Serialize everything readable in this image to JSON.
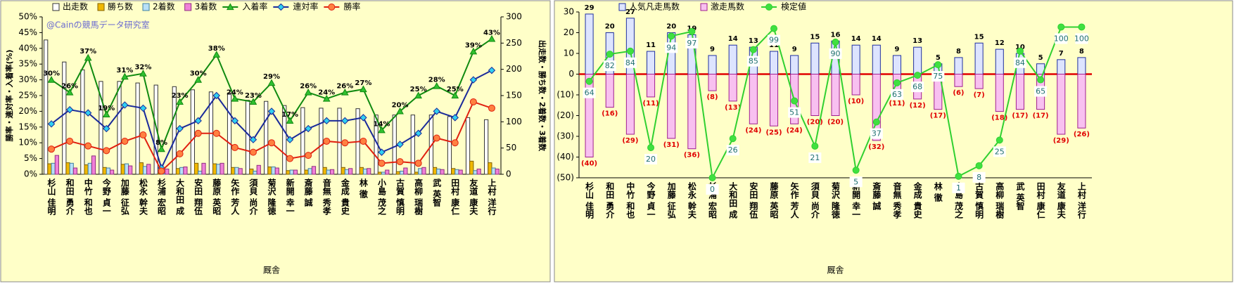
{
  "chart_data": [
    {
      "type": "combo",
      "bar_mode": "group",
      "x_label": "厩舎",
      "y_label": "勝率・連対率・入着率(%)",
      "y2_label": "出走数・勝ち数・2着数・3着数",
      "annotation": "@Cainの競馬データ研究室",
      "categories": [
        "杉山 佳明",
        "和田 勇介",
        "中竹 和也",
        "今野 貞一",
        "加藤 征弘",
        "松永 幹夫",
        "杉浦 宏昭",
        "大和田 成",
        "安田 翔伍",
        "藤原 英昭",
        "矢作 芳人",
        "須貝 尚介",
        "菊沢 隆徳",
        "新開 幸一",
        "斎藤 誠",
        "音無 秀孝",
        "金成 貴史",
        "林 徹",
        "小島 茂之",
        "古賀 慎明",
        "高柳 瑞樹",
        "武 英智",
        "田村 康仁",
        "友道 康夫",
        "上村 洋行"
      ],
      "ylim": [
        0,
        50
      ],
      "yticks": [
        {
          "value": 0,
          "label": "0%"
        },
        {
          "value": 5,
          "label": "5%"
        },
        {
          "value": 10,
          "label": "10%"
        },
        {
          "value": 15,
          "label": "15%"
        },
        {
          "value": 20,
          "label": "20%"
        },
        {
          "value": 25,
          "label": "25%"
        },
        {
          "value": 30,
          "label": "30%"
        },
        {
          "value": 35,
          "label": "35%"
        },
        {
          "value": 40,
          "label": "40%"
        },
        {
          "value": 45,
          "label": "45%"
        },
        {
          "value": 50,
          "label": "50%"
        }
      ],
      "y2lim": [
        0,
        300
      ],
      "y2ticks": [
        0,
        50,
        100,
        150,
        200,
        250,
        300
      ],
      "series": [
        {
          "name": "出走数",
          "kind": "bar",
          "axis": "y2",
          "color": "#ffffff",
          "edge": "#333333",
          "values": [
            256,
            214,
            199,
            177,
            177,
            174,
            170,
            167,
            161,
            157,
            155,
            141,
            139,
            131,
            127,
            126,
            126,
            125,
            113,
            113,
            113,
            113,
            110,
            108,
            104
          ]
        },
        {
          "name": "勝ち数",
          "kind": "bar",
          "axis": "y2",
          "color": "#f0b800",
          "edge": "#806000",
          "values": [
            20,
            22,
            18,
            13,
            19,
            22,
            2,
            11,
            21,
            20,
            13,
            10,
            14,
            7,
            8,
            13,
            13,
            13,
            4,
            5,
            4,
            13,
            11,
            25,
            22
          ]
        },
        {
          "name": "2着数",
          "kind": "bar",
          "axis": "y2",
          "color": "#b8e0f8",
          "edge": "#4080a0",
          "values": [
            21,
            21,
            21,
            12,
            20,
            15,
            2,
            13,
            6,
            19,
            13,
            6,
            14,
            8,
            11,
            8,
            9,
            10,
            4,
            6,
            11,
            10,
            9,
            7,
            12
          ]
        },
        {
          "name": "3着数",
          "kind": "bar",
          "axis": "y2",
          "color": "#f080d8",
          "edge": "#903080",
          "values": [
            36,
            12,
            35,
            8,
            16,
            19,
            10,
            14,
            21,
            21,
            11,
            17,
            12,
            8,
            15,
            9,
            11,
            11,
            8,
            12,
            13,
            9,
            8,
            10,
            10
          ]
        },
        {
          "name": "入着率",
          "kind": "line",
          "color": "#108a10",
          "marker": "triangle",
          "marker_fill": "#30c030",
          "label_pos": "above",
          "label_color": "#000000",
          "values": [
            30,
            26,
            37,
            19,
            31,
            32,
            8,
            23,
            30,
            38,
            24,
            23,
            29,
            17,
            26,
            24,
            26,
            27,
            14,
            20,
            25,
            28,
            25,
            39,
            43
          ],
          "value_labels": [
            "30%",
            "26%",
            "37%",
            "19%",
            "31%",
            "32%",
            "8%",
            "23%",
            "30%",
            "38%",
            "24%",
            "23%",
            "29%",
            "17%",
            "26%",
            "24%",
            "26%",
            "27%",
            "14%",
            "20%",
            "25%",
            "28%",
            "25%",
            "39%",
            "43%"
          ]
        },
        {
          "name": "連対率",
          "kind": "line",
          "color": "#1a2a9a",
          "marker": "diamond",
          "marker_fill": "#30d0f0",
          "values": [
            16,
            20.5,
            19.5,
            14.5,
            22,
            21,
            2,
            14.5,
            17,
            25,
            17,
            11,
            20,
            11,
            14.5,
            17,
            17,
            18,
            7,
            9.5,
            13,
            20,
            18,
            30,
            33
          ]
        },
        {
          "name": "勝率",
          "kind": "line",
          "color": "#e02010",
          "marker": "circle",
          "marker_fill": "#ff8040",
          "values": [
            8,
            10.5,
            9,
            7.5,
            10.5,
            12.5,
            1,
            6.5,
            13,
            13,
            8.5,
            7,
            10,
            5,
            6,
            10.5,
            10,
            10.5,
            3.5,
            4,
            3.5,
            11.5,
            10,
            23,
            21
          ]
        }
      ]
    },
    {
      "type": "combo",
      "bar_mode": "overlay",
      "x_label": "厩舎",
      "categories": [
        "杉山 佳明",
        "和田 勇介",
        "中竹 和也",
        "今野 貞一",
        "加藤 征弘",
        "松永 幹夫",
        "杉浦 宏昭",
        "大和田 成",
        "安田 翔伍",
        "藤原 英昭",
        "矢作 芳人",
        "須貝 尚介",
        "菊沢 隆徳",
        "新開 幸一",
        "斎藤 誠",
        "音無 秀孝",
        "金成 貴史",
        "林 徹",
        "小島 茂之",
        "古賀 慎明",
        "高柳 瑞樹",
        "武 英智",
        "田村 康仁",
        "友道 康夫",
        "上村 洋行"
      ],
      "ylim": [
        -50,
        30
      ],
      "yticks": [
        30,
        20,
        10,
        0,
        {
          "value": -10,
          "label": "(10)"
        },
        {
          "value": -20,
          "label": "(20)"
        },
        {
          "value": -30,
          "label": "(30)"
        },
        {
          "value": -40,
          "label": "(40)"
        },
        {
          "value": -50,
          "label": "(50)"
        }
      ],
      "y2lim": [
        0,
        110
      ],
      "zero_line": "#e00000",
      "series": [
        {
          "name": "人気凡走馬数",
          "kind": "bar",
          "color": "#dde4ff",
          "edge": "#2030a0",
          "show_labels": true,
          "label_pos": "above",
          "label_color": "#000000",
          "values": [
            29,
            20,
            27,
            11,
            20,
            19,
            9,
            14,
            13,
            11,
            9,
            15,
            16,
            14,
            14,
            9,
            13,
            5,
            8,
            15,
            12,
            10,
            5,
            7,
            8
          ]
        },
        {
          "name": "激走馬数",
          "kind": "bar",
          "color": "#f8c0f0",
          "edge": "#a02090",
          "label_pos": "below",
          "label_color": "#e00000",
          "values": [
            -40,
            -16,
            -29,
            -11,
            -31,
            -36,
            -8,
            -13,
            -24,
            -25,
            -24,
            -20,
            -20,
            -10,
            -32,
            -11,
            -12,
            -17,
            -6,
            -7,
            -18,
            -17,
            -17,
            -29,
            -26
          ],
          "value_labels": [
            "(40)",
            "(16)",
            "(29)",
            "(11)",
            "(31)",
            "(36)",
            "(8)",
            "(13)",
            "(24)",
            "(25)",
            "(24)",
            "(20)",
            "(20)",
            "(10)",
            "(32)",
            "(11)",
            "(12)",
            "(17)",
            "(6)",
            "(7)",
            "(18)",
            "(17)",
            "(17)",
            "(29)",
            "(26)"
          ]
        },
        {
          "name": "検定値",
          "kind": "line",
          "axis": "y2",
          "color": "#30d030",
          "marker": "circle",
          "marker_fill": "#40e040",
          "show_labels": true,
          "label_pos": "box",
          "label_color": "#207070",
          "values": [
            64,
            82,
            84,
            20,
            94,
            97,
            0,
            26,
            85,
            99,
            51,
            21,
            90,
            5,
            37,
            63,
            68,
            75,
            1,
            8,
            25,
            84,
            65,
            100,
            100
          ]
        }
      ]
    }
  ]
}
